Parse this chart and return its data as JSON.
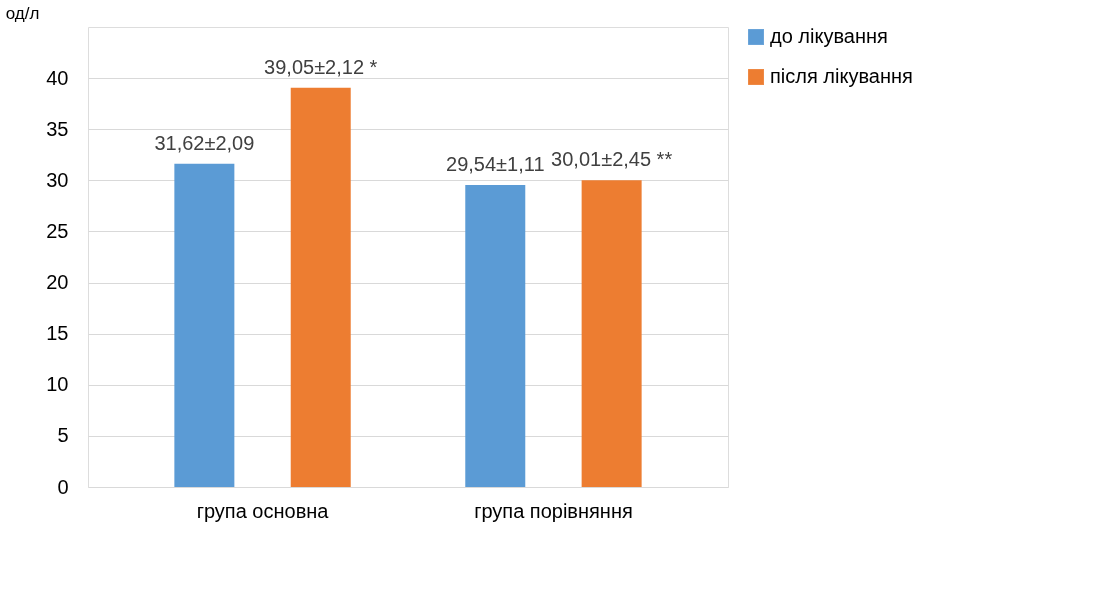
{
  "chart_data": {
    "type": "bar",
    "ylabel": "од/л",
    "categories": [
      "група основна",
      "група порівняння"
    ],
    "series": [
      {
        "name": "до лікування",
        "color": "#5b9bd5",
        "values": [
          31.62,
          29.54
        ],
        "value_labels": [
          "31,62±2,09",
          "29,54±1,11"
        ]
      },
      {
        "name": "після лікування",
        "color": "#ed7d31",
        "values": [
          39.05,
          30.01
        ],
        "value_labels": [
          "39,05±2,12 *",
          "30,01±2,45 **"
        ]
      }
    ],
    "ylim": [
      0,
      45
    ],
    "yticks": [
      0,
      5,
      10,
      15,
      20,
      25,
      30,
      35,
      40
    ],
    "grid": "y",
    "legend": "right"
  }
}
